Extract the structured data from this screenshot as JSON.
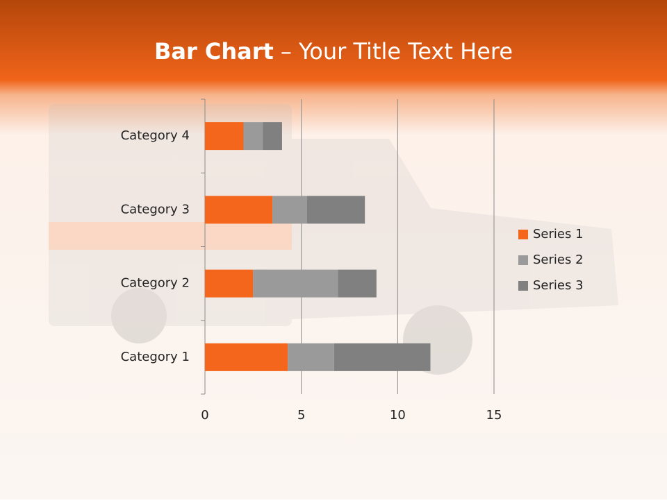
{
  "chart_data": {
    "type": "stacked-bar-horizontal",
    "title_bold": "Bar Chart",
    "title_rest": "– Your Title Text Here",
    "categories": [
      "Category 1",
      "Category 2",
      "Category 3",
      "Category 4"
    ],
    "series": [
      {
        "name": "Series 1",
        "color": "#f4661b",
        "values": [
          4.3,
          2.5,
          3.5,
          2
        ]
      },
      {
        "name": "Series 2",
        "color": "#9a9a9a",
        "values": [
          2.4,
          4.4,
          1.8,
          1
        ]
      },
      {
        "name": "Series 3",
        "color": "#808080",
        "values": [
          5,
          2,
          3,
          1
        ]
      }
    ],
    "xlim": [
      0,
      15
    ],
    "xticks": [
      0,
      5,
      10,
      15
    ],
    "grid": true,
    "legend": "right"
  }
}
